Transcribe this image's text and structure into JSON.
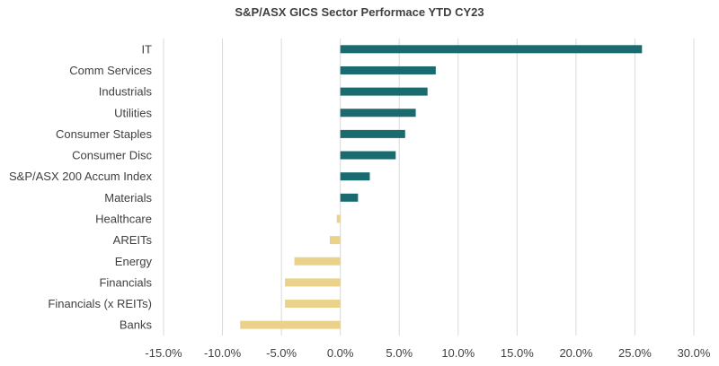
{
  "chart_data": {
    "type": "bar",
    "orientation": "horizontal",
    "title": "S&P/ASX GICS Sector Performace YTD CY23",
    "categories": [
      "IT",
      "Comm Services",
      "Industrials",
      "Utilities",
      "Consumer Staples",
      "Consumer Disc",
      "S&P/ASX 200 Accum Index",
      "Materials",
      "Healthcare",
      "AREITs",
      "Energy",
      "Financials",
      "Financials (x REITs)",
      "Banks"
    ],
    "values": [
      25.6,
      8.1,
      7.4,
      6.4,
      5.5,
      4.7,
      2.5,
      1.5,
      -0.3,
      -0.9,
      -3.9,
      -4.7,
      -4.7,
      -8.5
    ],
    "xlim": [
      -15,
      30
    ],
    "xticks": [
      -15,
      -10,
      -5,
      0,
      5,
      10,
      15,
      20,
      25,
      30
    ],
    "xtick_labels": [
      "-15.0%",
      "-10.0%",
      "-5.0%",
      "0.0%",
      "5.0%",
      "10.0%",
      "15.0%",
      "20.0%",
      "25.0%",
      "30.0%"
    ],
    "grid": true,
    "legend": "none",
    "colors": {
      "positive": "#1a6b70",
      "negative": "#ebd28a",
      "grid": "#d9d9d9",
      "text": "#404040"
    }
  }
}
